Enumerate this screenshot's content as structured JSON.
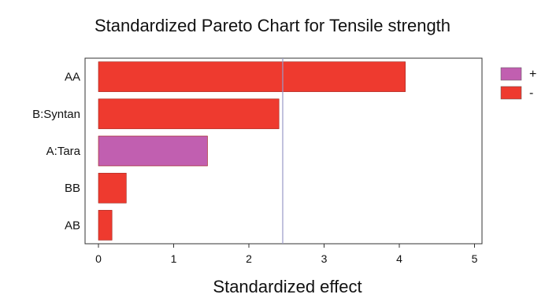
{
  "chart_data": {
    "type": "bar",
    "orientation": "horizontal",
    "title": "Standardized Pareto Chart for Tensile strength",
    "xlabel": "Standardized effect",
    "ylabel": "",
    "categories": [
      "AA",
      "B:Syntan",
      "A:Tara",
      "BB",
      "AB"
    ],
    "values": [
      4.08,
      2.4,
      1.45,
      0.37,
      0.18
    ],
    "signs": [
      "-",
      "-",
      "+",
      "-",
      "-"
    ],
    "xlim": [
      0,
      5
    ],
    "xticks": [
      "0",
      "1",
      "2",
      "3",
      "4",
      "5"
    ],
    "reference_line": 2.45,
    "grid": false,
    "legend": {
      "placement": "right",
      "entries": [
        {
          "label": "+",
          "color": "#c15fb0"
        },
        {
          "label": "-",
          "color": "#ee3a2f"
        }
      ]
    },
    "colors": {
      "positive": "#c15fb0",
      "negative": "#ee3a2f",
      "reference_line": "#9a9ac8"
    }
  }
}
